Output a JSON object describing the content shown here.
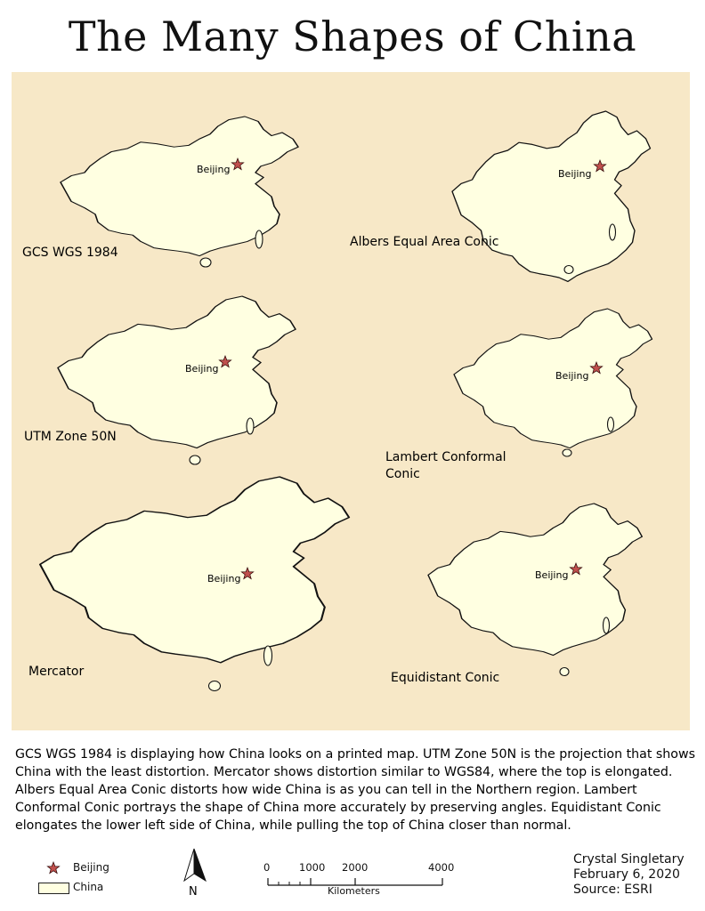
{
  "title": "The Many Shapes of China",
  "map": {
    "capital_label": "Beijing",
    "panels": [
      {
        "projection": "GCS WGS 1984"
      },
      {
        "projection": "Albers Equal Area Conic"
      },
      {
        "projection": "UTM Zone 50N"
      },
      {
        "projection": "Lambert Conformal",
        "projection_line2": "Conic"
      },
      {
        "projection": "Mercator"
      },
      {
        "projection": "Equidistant Conic"
      }
    ],
    "colors": {
      "background": "#f7e8c7",
      "country_fill": "#ffffe1",
      "capital_star": "#c0504d"
    }
  },
  "description": "GCS WGS 1984 is displaying how China looks on a printed map. UTM Zone 50N is the projection that shows China with the least distortion. Mercator shows distortion similar to WGS84, where the top is elongated. Albers Equal Area Conic distorts how wide China is as you can tell in the Northern region. Lambert Conformal Conic portrays the shape of China more accurately by preserving angles. Equidistant Conic elongates the lower left side of China, while pulling the top of China closer than normal.",
  "legend": {
    "items": [
      {
        "symbol": "star-icon",
        "label": "Beijing"
      },
      {
        "symbol": "polygon-swatch",
        "label": "China"
      }
    ]
  },
  "north_arrow": {
    "label": "N"
  },
  "scale_bar": {
    "ticks": [
      "0",
      "1000",
      "2000",
      "4000"
    ],
    "unit": "Kilometers"
  },
  "credits": {
    "author": "Crystal Singletary",
    "date": "February 6, 2020",
    "source": "Source: ESRI"
  }
}
